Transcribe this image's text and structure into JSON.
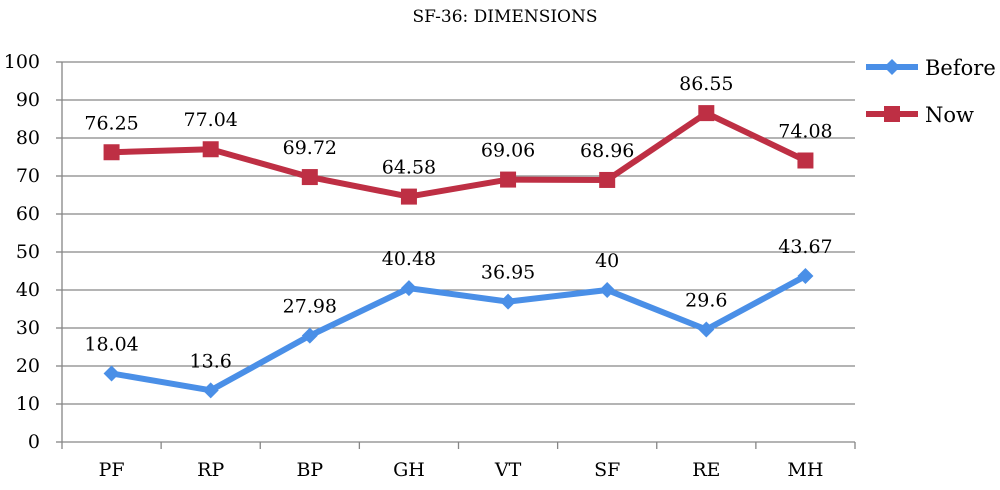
{
  "chart_data": {
    "type": "line",
    "title": "SF-36: DIMENSIONS",
    "categories": [
      "PF",
      "RP",
      "BP",
      "GH",
      "VT",
      "SF",
      "RE",
      "MH"
    ],
    "ylim": [
      0,
      100
    ],
    "yticks": [
      0,
      10,
      20,
      30,
      40,
      50,
      60,
      70,
      80,
      90,
      100
    ],
    "grid": true,
    "legend_position": "right",
    "series": [
      {
        "name": "Before",
        "color": "#4A8FE7",
        "marker": "diamond",
        "values": [
          18.04,
          13.6,
          27.98,
          40.48,
          36.95,
          40,
          29.6,
          43.67
        ],
        "labels": [
          "18.04",
          "13.6",
          "27.98",
          "40.48",
          "36.95",
          "40",
          "29.6",
          "43.67"
        ]
      },
      {
        "name": "Now",
        "color": "#BE2F44",
        "marker": "square",
        "values": [
          76.25,
          77.04,
          69.72,
          64.58,
          69.06,
          68.96,
          86.55,
          74.08
        ],
        "labels": [
          "76.25",
          "77.04",
          "69.72",
          "64.58",
          "69.06",
          "68.96",
          "86.55",
          "74.08"
        ]
      }
    ]
  }
}
